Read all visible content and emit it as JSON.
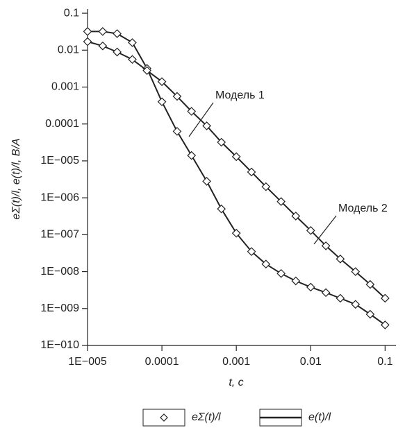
{
  "chart_data": {
    "type": "line",
    "y_label": "eΣ(t)/l, e(t)/l, В/А",
    "x_label": "t, с",
    "x": [
      1e-05,
      1.6e-05,
      2.5e-05,
      4e-05,
      6.3e-05,
      0.0001,
      0.00016,
      0.00025,
      0.0004,
      0.00063,
      0.001,
      0.0016,
      0.0025,
      0.004,
      0.0063,
      0.01,
      0.016,
      0.025,
      0.04,
      0.063,
      0.1
    ],
    "series": [
      {
        "name": "Модель 1",
        "color": "#222222",
        "values": [
          0.032,
          0.032,
          0.028,
          0.016,
          0.0032,
          0.0004,
          6.3e-05,
          1.4e-05,
          2.8e-06,
          5e-07,
          1.1e-07,
          3.5e-08,
          1.6e-08,
          8.9e-09,
          5.6e-09,
          3.8e-09,
          2.7e-09,
          1.9e-09,
          1.3e-09,
          7e-10,
          3.6e-10
        ]
      },
      {
        "name": "Модель 2",
        "color": "#222222",
        "values": [
          0.017,
          0.013,
          0.0089,
          0.0056,
          0.0028,
          0.0014,
          0.00056,
          0.00022,
          8.9e-05,
          3.2e-05,
          1.3e-05,
          5e-06,
          2e-06,
          7.9e-07,
          3.2e-07,
          1.3e-07,
          5e-08,
          2.2e-08,
          1e-08,
          4.5e-09,
          1.9e-09
        ]
      }
    ],
    "legend": [
      {
        "label": "eΣ(t)/l",
        "marker": "diamond"
      },
      {
        "label": "e(t)/l",
        "marker": "line"
      }
    ],
    "xscale": "log",
    "yscale": "log",
    "xlim": [
      1e-05,
      0.14
    ],
    "ylim": [
      1e-10,
      0.13
    ],
    "xticks": [
      {
        "value": 1e-05,
        "label": "1E−005"
      },
      0.0001,
      0.001,
      0.01,
      0.1
    ],
    "yticks": [
      {
        "value": 1e-10,
        "label": "1E−010"
      },
      {
        "value": 1e-09,
        "label": "1E−009"
      },
      {
        "value": 1e-08,
        "label": "1E−008"
      },
      {
        "value": 1e-07,
        "label": "1E−007"
      },
      {
        "value": 1e-06,
        "label": "1E−006"
      },
      {
        "value": 1e-05,
        "label": "1E−005"
      },
      0.0001,
      0.001,
      0.01,
      0.1
    ],
    "grid": false
  }
}
